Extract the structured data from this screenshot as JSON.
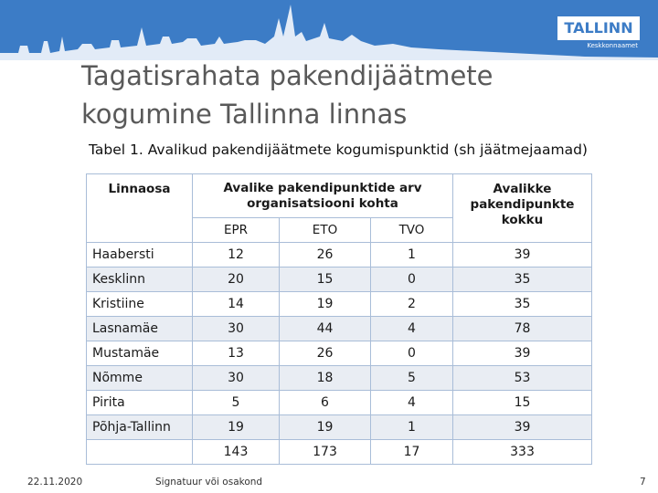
{
  "header": {
    "logo": "TALLINN",
    "department": "Keskkonnaamet"
  },
  "title": [
    "Tagatisrahata pakendijäätmete",
    "kogumine Tallinna linnas"
  ],
  "caption": "Tabel 1. Avalikud pakendijäätmete kogumispunktid (sh jäätmejaamad)",
  "table": {
    "headers": [
      "Linnaosa",
      "Avalike pakendipunktide arv organisatsiooni kohta",
      "Avalikke pakendipunkte kokku"
    ],
    "subheaders": [
      "EPR",
      "ETO",
      "TVO"
    ],
    "rows": [
      [
        "Haabersti",
        12,
        26,
        1,
        39
      ],
      [
        "Kesklinn",
        20,
        15,
        0,
        35
      ],
      [
        "Kristiine",
        14,
        19,
        2,
        35
      ],
      [
        "Lasnamäe",
        30,
        44,
        4,
        78
      ],
      [
        "Mustamäe",
        13,
        26,
        0,
        39
      ],
      [
        "Nõmme",
        30,
        18,
        5,
        53
      ],
      [
        "Pirita",
        5,
        6,
        4,
        15
      ],
      [
        "Põhja-Tallinn",
        19,
        19,
        1,
        39
      ]
    ],
    "totals": [
      143,
      173,
      17,
      333
    ]
  },
  "footer": {
    "date": "22.11.2020",
    "signature": "Signatuur või osakond",
    "page": 7
  }
}
